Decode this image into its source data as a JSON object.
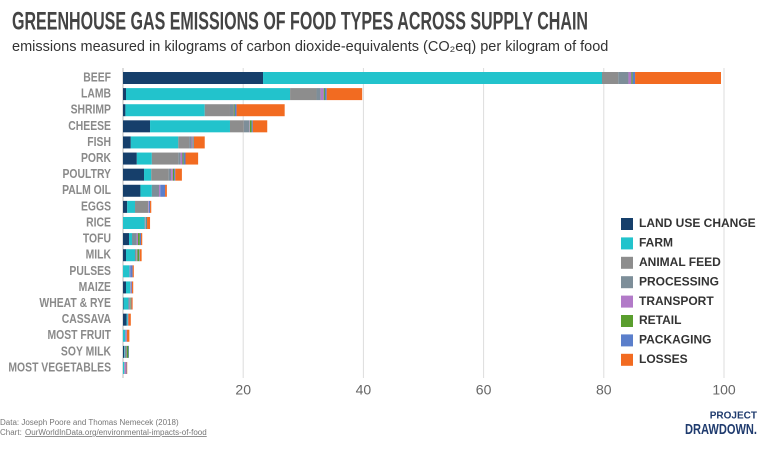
{
  "chart_data": {
    "type": "bar",
    "orientation": "horizontal",
    "stacked": true,
    "title": "GREENHOUSE GAS EMISSIONS OF FOOD TYPES ACROSS SUPPLY CHAIN",
    "subtitle": "emissions measured in kilograms of carbon dioxide-equivalents (CO₂eq) per kilogram of food",
    "categories": [
      "BEEF",
      "LAMB",
      "SHRIMP",
      "CHEESE",
      "FISH",
      "PORK",
      "POULTRY",
      "PALM OIL",
      "EGGS",
      "RICE",
      "TOFU",
      "MILK",
      "PULSES",
      "MAIZE",
      "WHEAT & RYE",
      "CASSAVA",
      "MOST FRUIT",
      "SOY MILK",
      "MOST VEGETABLES"
    ],
    "series": [
      {
        "name": "LAND USE CHANGE",
        "color": "#163f6b",
        "values": [
          23.3,
          0.5,
          0.4,
          4.5,
          1.3,
          2.3,
          3.5,
          2.9,
          0.7,
          0,
          1.0,
          0.5,
          0,
          0.5,
          0.1,
          0.6,
          0,
          0.2,
          0
        ]
      },
      {
        "name": "FARM",
        "color": "#22c3cc",
        "values": [
          56.4,
          27.3,
          13.2,
          13.3,
          7.9,
          2.5,
          1.2,
          1.9,
          1.3,
          3.6,
          0.5,
          1.5,
          1.1,
          0.7,
          0.8,
          0.2,
          0.4,
          0.1,
          0.2
        ]
      },
      {
        "name": "ANIMAL FEED",
        "color": "#8d8d8d",
        "values": [
          2.7,
          4.4,
          4.2,
          2.3,
          1.8,
          4.4,
          2.9,
          0,
          2.2,
          0,
          0,
          0.2,
          0,
          0,
          0,
          0,
          0,
          0,
          0
        ]
      },
      {
        "name": "PROCESSING",
        "color": "#7d8e99",
        "values": [
          1.7,
          0.7,
          0.5,
          0.9,
          0.4,
          0.4,
          0.4,
          1.2,
          0,
          0.1,
          0.8,
          0.1,
          0,
          0.1,
          0.2,
          0,
          0,
          0.2,
          0.1
        ]
      },
      {
        "name": "TRANSPORT",
        "color": "#b27ac8",
        "values": [
          0.5,
          0.5,
          0.1,
          0.1,
          0.2,
          0.3,
          0.3,
          0.2,
          0.1,
          0.1,
          0.2,
          0.1,
          0.1,
          0.1,
          0.1,
          0.1,
          0.2,
          0.1,
          0.2
        ]
      },
      {
        "name": "RETAIL",
        "color": "#5a9e2e",
        "values": [
          0.2,
          0.2,
          0.2,
          0.3,
          0.1,
          0.2,
          0.2,
          0,
          0,
          0.1,
          0.3,
          0.3,
          0,
          0,
          0.1,
          0,
          0.02,
          0.3,
          0
        ]
      },
      {
        "name": "PACKAGING",
        "color": "#5b7fcb",
        "values": [
          0.4,
          0.3,
          0.3,
          0.2,
          0.1,
          0.3,
          0.2,
          0.8,
          0.2,
          0.1,
          0.2,
          0.1,
          0.4,
          0.1,
          0.1,
          0,
          0.04,
          0.1,
          0.1
        ]
      },
      {
        "name": "LOSSES",
        "color": "#f26b21",
        "values": [
          14.3,
          5.9,
          8.0,
          2.4,
          1.8,
          2.1,
          1.1,
          0.3,
          0.2,
          0.5,
          0.2,
          0.3,
          0.2,
          0.2,
          0.2,
          0.4,
          0.4,
          0,
          0.1
        ]
      }
    ],
    "xlim": [
      0,
      100
    ],
    "xticks": [
      20,
      40,
      60,
      80,
      100
    ],
    "grid": true,
    "legend": "lower right"
  },
  "footer": {
    "data": "Data: Joseph Poore and Thomas Nemecek (2018)",
    "chart_label": "Chart:",
    "chart_link": "OurWorldInData.org/environmental-impacts-of-food"
  },
  "logo": {
    "line1": "PROJECT",
    "line2": "DRAWDOWN."
  }
}
